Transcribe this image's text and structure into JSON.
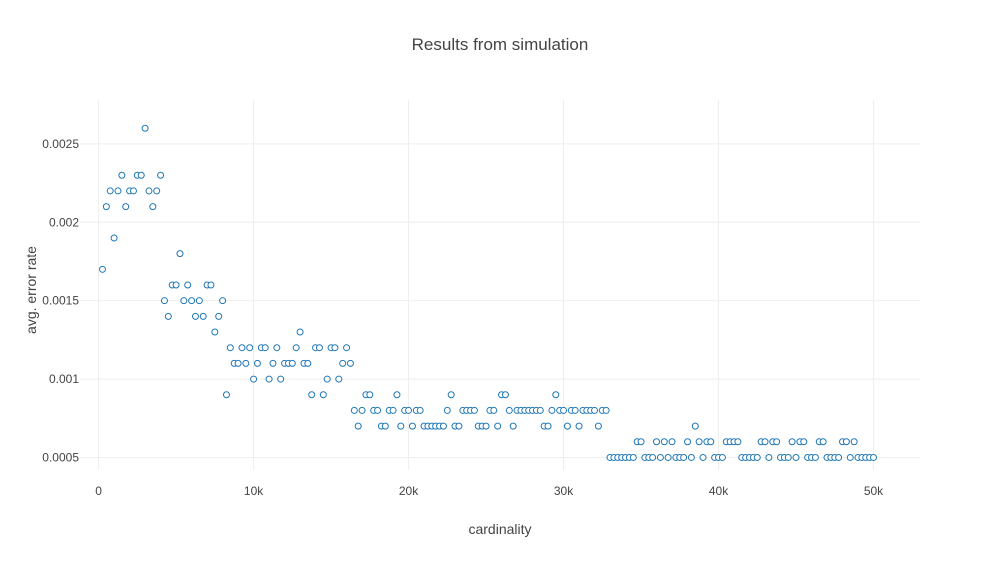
{
  "chart_data": {
    "type": "scatter",
    "title": "Results from simulation",
    "xlabel": "cardinality",
    "ylabel": "avg. error rate",
    "xlim": [
      -1200,
      53000
    ],
    "ylim": [
      0.00042,
      0.00278
    ],
    "grid": true,
    "legend": "none",
    "x_ticks": [
      {
        "value": 0,
        "label": "0"
      },
      {
        "value": 10000,
        "label": "10k"
      },
      {
        "value": 20000,
        "label": "20k"
      },
      {
        "value": 30000,
        "label": "30k"
      },
      {
        "value": 40000,
        "label": "40k"
      },
      {
        "value": 50000,
        "label": "50k"
      }
    ],
    "y_ticks": [
      {
        "value": 0.0005,
        "label": "0.0005"
      },
      {
        "value": 0.001,
        "label": "0.001"
      },
      {
        "value": 0.0015,
        "label": "0.0015"
      },
      {
        "value": 0.002,
        "label": "0.002"
      },
      {
        "value": 0.0025,
        "label": "0.0025"
      }
    ],
    "series": [
      {
        "marker": "open-circle",
        "color": "#1f77b4",
        "points": [
          [
            250,
            0.0017
          ],
          [
            500,
            0.0021
          ],
          [
            750,
            0.0022
          ],
          [
            1000,
            0.0019
          ],
          [
            1250,
            0.0022
          ],
          [
            1500,
            0.0023
          ],
          [
            1750,
            0.0021
          ],
          [
            2000,
            0.0022
          ],
          [
            2250,
            0.0022
          ],
          [
            2500,
            0.0023
          ],
          [
            2750,
            0.0023
          ],
          [
            3000,
            0.0026
          ],
          [
            3250,
            0.0022
          ],
          [
            3500,
            0.0021
          ],
          [
            3750,
            0.0022
          ],
          [
            4000,
            0.0023
          ],
          [
            4250,
            0.0015
          ],
          [
            4500,
            0.0014
          ],
          [
            4750,
            0.0016
          ],
          [
            5000,
            0.0016
          ],
          [
            5250,
            0.0018
          ],
          [
            5500,
            0.0015
          ],
          [
            5750,
            0.0016
          ],
          [
            6000,
            0.0015
          ],
          [
            6250,
            0.0014
          ],
          [
            6500,
            0.0015
          ],
          [
            6750,
            0.0014
          ],
          [
            7000,
            0.0016
          ],
          [
            7250,
            0.0016
          ],
          [
            7500,
            0.0013
          ],
          [
            7750,
            0.0014
          ],
          [
            8000,
            0.0015
          ],
          [
            8250,
            0.0009
          ],
          [
            8500,
            0.0012
          ],
          [
            8750,
            0.0011
          ],
          [
            9000,
            0.0011
          ],
          [
            9250,
            0.0012
          ],
          [
            9500,
            0.0011
          ],
          [
            9750,
            0.0012
          ],
          [
            10000,
            0.001
          ],
          [
            10250,
            0.0011
          ],
          [
            10500,
            0.0012
          ],
          [
            10750,
            0.0012
          ],
          [
            11000,
            0.001
          ],
          [
            11250,
            0.0011
          ],
          [
            11500,
            0.0012
          ],
          [
            11750,
            0.001
          ],
          [
            12000,
            0.0011
          ],
          [
            12250,
            0.0011
          ],
          [
            12500,
            0.0011
          ],
          [
            12750,
            0.0012
          ],
          [
            13000,
            0.0013
          ],
          [
            13250,
            0.0011
          ],
          [
            13500,
            0.0011
          ],
          [
            13750,
            0.0009
          ],
          [
            14000,
            0.0012
          ],
          [
            14250,
            0.0012
          ],
          [
            14500,
            0.0009
          ],
          [
            14750,
            0.001
          ],
          [
            15000,
            0.0012
          ],
          [
            15250,
            0.0012
          ],
          [
            15500,
            0.001
          ],
          [
            15750,
            0.0011
          ],
          [
            16000,
            0.0012
          ],
          [
            16250,
            0.0011
          ],
          [
            16500,
            0.0008
          ],
          [
            16750,
            0.0007
          ],
          [
            17000,
            0.0008
          ],
          [
            17250,
            0.0009
          ],
          [
            17500,
            0.0009
          ],
          [
            17750,
            0.0008
          ],
          [
            18000,
            0.0008
          ],
          [
            18250,
            0.0007
          ],
          [
            18500,
            0.0007
          ],
          [
            18750,
            0.0008
          ],
          [
            19000,
            0.0008
          ],
          [
            19250,
            0.0009
          ],
          [
            19500,
            0.0007
          ],
          [
            19750,
            0.0008
          ],
          [
            20000,
            0.0008
          ],
          [
            20250,
            0.0007
          ],
          [
            20500,
            0.0008
          ],
          [
            20750,
            0.0008
          ],
          [
            21000,
            0.0007
          ],
          [
            21250,
            0.0007
          ],
          [
            21500,
            0.0007
          ],
          [
            21750,
            0.0007
          ],
          [
            22000,
            0.0007
          ],
          [
            22250,
            0.0007
          ],
          [
            22500,
            0.0008
          ],
          [
            22750,
            0.0009
          ],
          [
            23000,
            0.0007
          ],
          [
            23250,
            0.0007
          ],
          [
            23500,
            0.0008
          ],
          [
            23750,
            0.0008
          ],
          [
            24000,
            0.0008
          ],
          [
            24250,
            0.0008
          ],
          [
            24500,
            0.0007
          ],
          [
            24750,
            0.0007
          ],
          [
            25000,
            0.0007
          ],
          [
            25250,
            0.0008
          ],
          [
            25500,
            0.0008
          ],
          [
            25750,
            0.0007
          ],
          [
            26000,
            0.0009
          ],
          [
            26250,
            0.0009
          ],
          [
            26500,
            0.0008
          ],
          [
            26750,
            0.0007
          ],
          [
            27000,
            0.0008
          ],
          [
            27250,
            0.0008
          ],
          [
            27500,
            0.0008
          ],
          [
            27750,
            0.0008
          ],
          [
            28000,
            0.0008
          ],
          [
            28250,
            0.0008
          ],
          [
            28500,
            0.0008
          ],
          [
            28750,
            0.0007
          ],
          [
            29000,
            0.0007
          ],
          [
            29250,
            0.0008
          ],
          [
            29500,
            0.0009
          ],
          [
            29750,
            0.0008
          ],
          [
            30000,
            0.0008
          ],
          [
            30250,
            0.0007
          ],
          [
            30500,
            0.0008
          ],
          [
            30750,
            0.0008
          ],
          [
            31000,
            0.0007
          ],
          [
            31250,
            0.0008
          ],
          [
            31500,
            0.0008
          ],
          [
            31750,
            0.0008
          ],
          [
            32000,
            0.0008
          ],
          [
            32250,
            0.0007
          ],
          [
            32500,
            0.0008
          ],
          [
            32750,
            0.0008
          ],
          [
            33000,
            0.0005
          ],
          [
            33250,
            0.0005
          ],
          [
            33500,
            0.0005
          ],
          [
            33750,
            0.0005
          ],
          [
            34000,
            0.0005
          ],
          [
            34250,
            0.0005
          ],
          [
            34500,
            0.0005
          ],
          [
            34750,
            0.0006
          ],
          [
            35000,
            0.0006
          ],
          [
            35250,
            0.0005
          ],
          [
            35500,
            0.0005
          ],
          [
            35750,
            0.0005
          ],
          [
            36000,
            0.0006
          ],
          [
            36250,
            0.0005
          ],
          [
            36500,
            0.0006
          ],
          [
            36750,
            0.0005
          ],
          [
            37000,
            0.0006
          ],
          [
            37250,
            0.0005
          ],
          [
            37500,
            0.0005
          ],
          [
            37750,
            0.0005
          ],
          [
            38000,
            0.0006
          ],
          [
            38250,
            0.0005
          ],
          [
            38500,
            0.0007
          ],
          [
            38750,
            0.0006
          ],
          [
            39000,
            0.0005
          ],
          [
            39250,
            0.0006
          ],
          [
            39500,
            0.0006
          ],
          [
            39750,
            0.0005
          ],
          [
            40000,
            0.0005
          ],
          [
            40250,
            0.0005
          ],
          [
            40500,
            0.0006
          ],
          [
            40750,
            0.0006
          ],
          [
            41000,
            0.0006
          ],
          [
            41250,
            0.0006
          ],
          [
            41500,
            0.0005
          ],
          [
            41750,
            0.0005
          ],
          [
            42000,
            0.0005
          ],
          [
            42250,
            0.0005
          ],
          [
            42500,
            0.0005
          ],
          [
            42750,
            0.0006
          ],
          [
            43000,
            0.0006
          ],
          [
            43250,
            0.0005
          ],
          [
            43500,
            0.0006
          ],
          [
            43750,
            0.0006
          ],
          [
            44000,
            0.0005
          ],
          [
            44250,
            0.0005
          ],
          [
            44500,
            0.0005
          ],
          [
            44750,
            0.0006
          ],
          [
            45000,
            0.0005
          ],
          [
            45250,
            0.0006
          ],
          [
            45500,
            0.0006
          ],
          [
            45750,
            0.0005
          ],
          [
            46000,
            0.0005
          ],
          [
            46250,
            0.0005
          ],
          [
            46500,
            0.0006
          ],
          [
            46750,
            0.0006
          ],
          [
            47000,
            0.0005
          ],
          [
            47250,
            0.0005
          ],
          [
            47500,
            0.0005
          ],
          [
            47750,
            0.0005
          ],
          [
            48000,
            0.0006
          ],
          [
            48250,
            0.0006
          ],
          [
            48500,
            0.0005
          ],
          [
            48750,
            0.0006
          ],
          [
            49000,
            0.0005
          ],
          [
            49250,
            0.0005
          ],
          [
            49500,
            0.0005
          ],
          [
            49750,
            0.0005
          ],
          [
            50000,
            0.0005
          ]
        ]
      }
    ]
  }
}
